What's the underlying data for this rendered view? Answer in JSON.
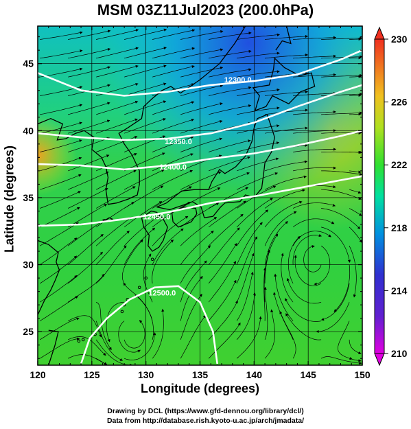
{
  "title": "MSM 03Z11Jul2023 (200.0hPa)",
  "x_axis": {
    "label": "Longitude (degrees)",
    "range": [
      120,
      150
    ],
    "ticks": [
      "120",
      "125",
      "130",
      "135",
      "140",
      "145",
      "150"
    ]
  },
  "y_axis": {
    "label": "Latitude (degrees)",
    "range": [
      22.5,
      47.8
    ],
    "ticks": [
      "25",
      "30",
      "35",
      "40",
      "45"
    ]
  },
  "colorbar": {
    "range": [
      210,
      230
    ],
    "ticks": [
      "210",
      "214",
      "218",
      "222",
      "226",
      "230"
    ],
    "colors": [
      "#e000e0",
      "#3030d0",
      "#00a0e0",
      "#00e0a0",
      "#30e030",
      "#c0e020",
      "#f0a020",
      "#f05020"
    ]
  },
  "contours": [
    {
      "label": "12300.0",
      "lat_at_label": 43.8,
      "lon_at_label": 138.5
    },
    {
      "label": "12350.0",
      "lat_at_label": 39.2,
      "lon_at_label": 133.0
    },
    {
      "label": "12400.0",
      "lat_at_label": 37.3,
      "lon_at_label": 132.5
    },
    {
      "label": "12450.0",
      "lat_at_label": 33.6,
      "lon_at_label": 131.0
    },
    {
      "label": "12500.0",
      "lat_at_label": 27.9,
      "lon_at_label": 131.5
    }
  ],
  "credits": {
    "line1": "Drawing by DCL (https://www.gfd-dennou.org/library/dcl/)",
    "line2": "Data from http://database.rish.kyoto-u.ac.jp/arch/jmadata/"
  }
}
